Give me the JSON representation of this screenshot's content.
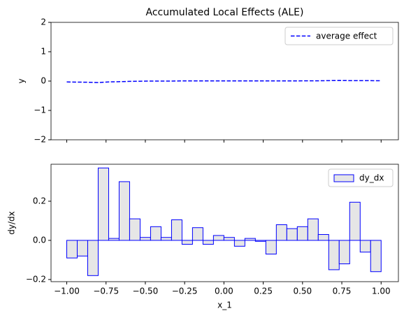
{
  "chart_data": [
    {
      "type": "line",
      "title": "Accumulated Local Effects (ALE)",
      "ylabel": "y",
      "x": [
        -1.0,
        -0.9333,
        -0.8667,
        -0.8,
        -0.7333,
        -0.6667,
        -0.6,
        -0.5333,
        -0.4667,
        -0.4,
        -0.3333,
        -0.2667,
        -0.2,
        -0.1333,
        -0.0667,
        0.0,
        0.0667,
        0.1333,
        0.2,
        0.2667,
        0.3333,
        0.4,
        0.4667,
        0.5333,
        0.6,
        0.6667,
        0.7333,
        0.8,
        0.8667,
        0.9333,
        1.0
      ],
      "series": [
        {
          "name": "average effect",
          "color": "#0000ff",
          "values": [
            -0.03,
            -0.035,
            -0.04,
            -0.05,
            -0.03,
            -0.02,
            -0.01,
            -0.005,
            0.0,
            0.0,
            0.0,
            0.005,
            0.005,
            0.005,
            0.005,
            0.005,
            0.005,
            0.005,
            0.005,
            0.005,
            0.005,
            0.005,
            0.005,
            0.01,
            0.01,
            0.015,
            0.02,
            0.015,
            0.015,
            0.015,
            0.01
          ]
        }
      ],
      "xlim": [
        -1.1,
        1.11
      ],
      "ylim": [
        -2,
        2
      ],
      "yticks": [
        {
          "value": -2,
          "label": "−2"
        },
        {
          "value": -1,
          "label": "−1"
        },
        0,
        1,
        2
      ],
      "legend": "upper right",
      "linestyle": "dashed"
    },
    {
      "type": "histogram",
      "xlabel": "x_1",
      "ylabel": "dy/dx",
      "bins": [
        -1.0,
        -0.9333,
        -0.8667,
        -0.8,
        -0.7333,
        -0.6667,
        -0.6,
        -0.5333,
        -0.4667,
        -0.4,
        -0.3333,
        -0.2667,
        -0.2,
        -0.1333,
        -0.0667,
        0.0,
        0.0667,
        0.1333,
        0.2,
        0.2667,
        0.3333,
        0.4,
        0.4667,
        0.5333,
        0.6,
        0.6667,
        0.7333,
        0.8,
        0.8667,
        0.9333,
        1.0
      ],
      "series": [
        {
          "name": "dy_dx",
          "color": "#e6e6e6",
          "edgecolor": "#0000ff",
          "values": [
            -0.09,
            -0.08,
            -0.18,
            0.37,
            0.01,
            0.3,
            0.11,
            0.015,
            0.07,
            0.015,
            0.105,
            -0.02,
            0.065,
            -0.02,
            0.025,
            0.015,
            -0.03,
            0.01,
            -0.005,
            -0.07,
            0.08,
            0.06,
            0.07,
            0.11,
            0.03,
            -0.15,
            -0.12,
            0.195,
            -0.06,
            -0.16
          ]
        }
      ],
      "xlim": [
        -1.1,
        1.11
      ],
      "ylim": [
        -0.211,
        0.389
      ],
      "xticks": [
        {
          "value": -1,
          "label": "−1.00"
        },
        {
          "value": -0.75,
          "label": "−0.75"
        },
        {
          "value": -0.5,
          "label": "−0.50"
        },
        {
          "value": -0.25,
          "label": "−0.25"
        },
        {
          "value": 0,
          "label": "0.00"
        },
        {
          "value": 0.25,
          "label": "0.25"
        },
        {
          "value": 0.5,
          "label": "0.50"
        },
        {
          "value": 0.75,
          "label": "0.75"
        },
        {
          "value": 1,
          "label": "1.00"
        }
      ],
      "yticks": [
        {
          "value": -0.2,
          "label": "−0.2"
        },
        {
          "value": 0,
          "label": "0.0"
        },
        0.2
      ],
      "legend": "upper right"
    }
  ]
}
